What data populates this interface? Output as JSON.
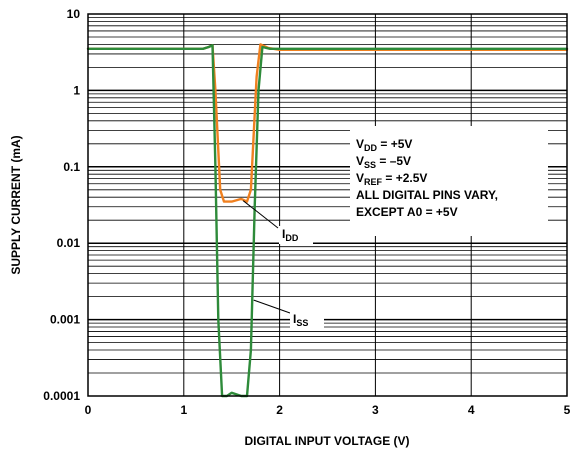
{
  "chart_data": {
    "type": "line",
    "title": "",
    "xlabel": "DIGITAL INPUT VOLTAGE (V)",
    "ylabel": "SUPPLY CURRENT (mA)",
    "xlim": [
      0,
      5
    ],
    "ylim": [
      0.0001,
      10
    ],
    "yscale": "log",
    "grid": true,
    "x_ticks": [
      0,
      1,
      2,
      3,
      4,
      5
    ],
    "x_tick_labels": [
      "0",
      "1",
      "2",
      "3",
      "4",
      "5"
    ],
    "y_ticks": [
      0.0001,
      0.001,
      0.01,
      0.1,
      1,
      10
    ],
    "y_tick_labels": [
      "0.0001",
      "0.001",
      "0.01",
      "0.1",
      "1",
      "10"
    ],
    "annotations": [
      {
        "main": "V",
        "sub": "DD",
        "rest": " = +5V"
      },
      {
        "main": "V",
        "sub": "SS",
        "rest": " = –5V"
      },
      {
        "main": "V",
        "sub": "REF",
        "rest": " = +2.5V"
      },
      {
        "main": "ALL DIGITAL PINS VARY,",
        "sub": "",
        "rest": ""
      },
      {
        "main": "EXCEPT A0 = +5V",
        "sub": "",
        "rest": ""
      }
    ],
    "series": [
      {
        "name": "IDD",
        "label_main": "I",
        "label_sub": "DD",
        "color": "#f08020",
        "x": [
          0,
          1.2,
          1.26,
          1.3,
          1.33,
          1.38,
          1.42,
          1.5,
          1.6,
          1.66,
          1.7,
          1.76,
          1.8,
          1.88,
          2.0,
          3.0,
          4.0,
          5.0
        ],
        "y": [
          3.5,
          3.5,
          3.7,
          3.9,
          1.0,
          0.05,
          0.035,
          0.035,
          0.038,
          0.035,
          0.05,
          1.5,
          4.0,
          3.6,
          3.4,
          3.4,
          3.4,
          3.4
        ]
      },
      {
        "name": "ISS",
        "label_main": "I",
        "label_sub": "SS",
        "color": "#2e8b3a",
        "x": [
          0,
          1.2,
          1.26,
          1.3,
          1.33,
          1.36,
          1.4,
          1.45,
          1.5,
          1.6,
          1.66,
          1.7,
          1.74,
          1.78,
          1.82,
          1.9,
          2.0,
          3.0,
          4.0,
          5.0
        ],
        "y": [
          3.5,
          3.5,
          3.7,
          3.9,
          0.1,
          0.001,
          0.0001,
          0.0001,
          0.00011,
          0.0001,
          0.0001,
          0.0004,
          0.03,
          1.0,
          3.7,
          3.5,
          3.5,
          3.5,
          3.5,
          3.5
        ]
      }
    ]
  },
  "colors": {
    "grid": "#000000",
    "idd": "#f08020",
    "iss": "#2e8b3a"
  }
}
